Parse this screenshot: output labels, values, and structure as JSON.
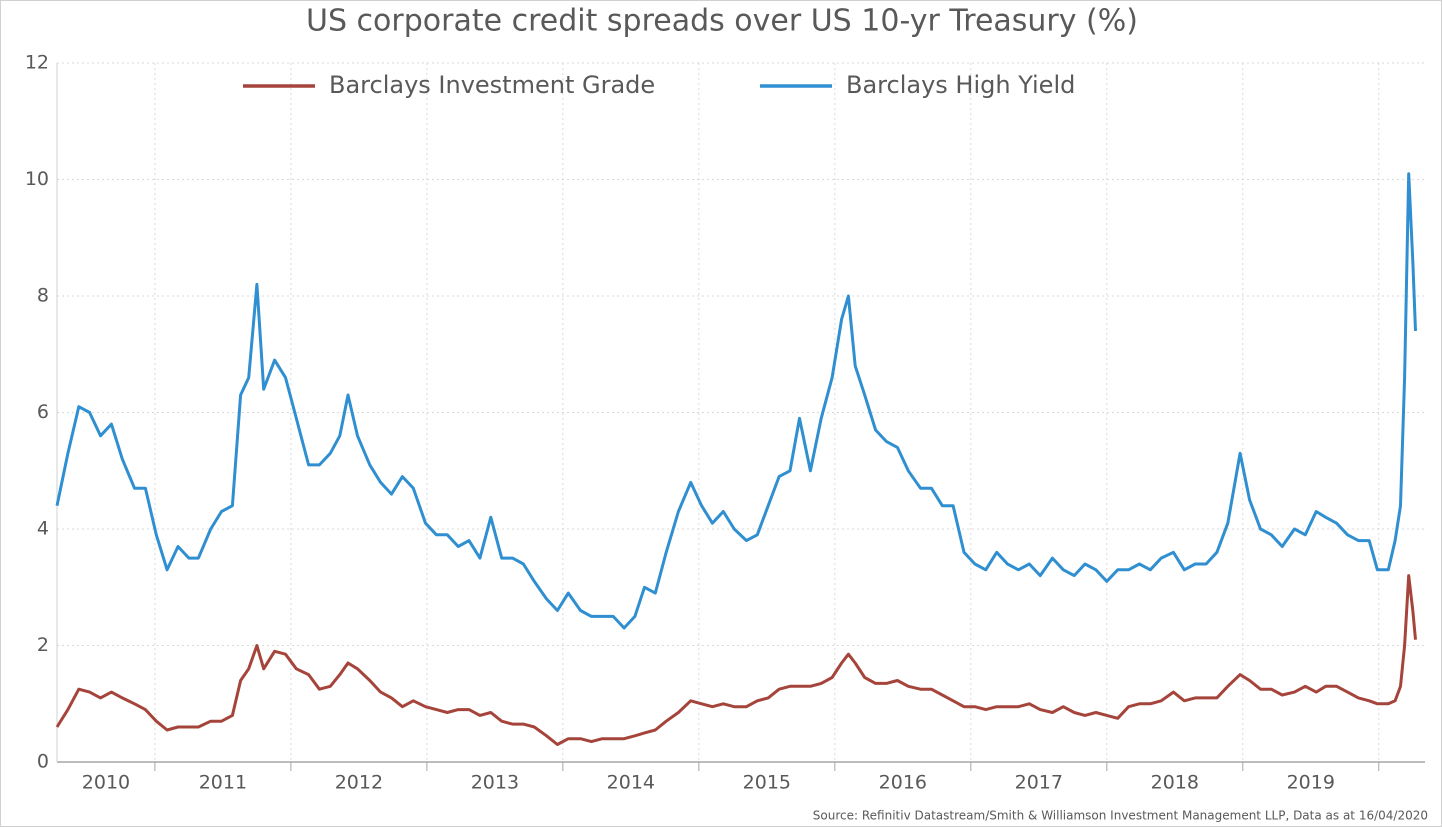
{
  "chart_data": {
    "type": "line",
    "title": "US corporate credit spreads over US 10-yr Treasury (%)",
    "source": "Source: Refinitiv Datastream/Smith & Williamson Investment Management LLP, Data as at 16/04/2020",
    "x": [
      2010.28,
      2010.36,
      2010.44,
      2010.52,
      2010.6,
      2010.68,
      2010.76,
      2010.85,
      2010.93,
      2011.01,
      2011.09,
      2011.17,
      2011.25,
      2011.32,
      2011.41,
      2011.49,
      2011.57,
      2011.63,
      2011.69,
      2011.75,
      2011.8,
      2011.88,
      2011.96,
      2012.04,
      2012.13,
      2012.21,
      2012.29,
      2012.36,
      2012.42,
      2012.49,
      2012.58,
      2012.66,
      2012.74,
      2012.82,
      2012.9,
      2012.99,
      2013.07,
      2013.15,
      2013.23,
      2013.31,
      2013.39,
      2013.47,
      2013.55,
      2013.63,
      2013.71,
      2013.79,
      2013.88,
      2013.96,
      2014.04,
      2014.13,
      2014.21,
      2014.29,
      2014.37,
      2014.45,
      2014.53,
      2014.6,
      2014.68,
      2014.76,
      2014.85,
      2014.94,
      2015.02,
      2015.1,
      2015.18,
      2015.26,
      2015.35,
      2015.43,
      2015.51,
      2015.59,
      2015.67,
      2015.74,
      2015.82,
      2015.9,
      2015.98,
      2016.05,
      2016.1,
      2016.15,
      2016.22,
      2016.3,
      2016.38,
      2016.46,
      2016.54,
      2016.63,
      2016.71,
      2016.79,
      2016.87,
      2016.95,
      2017.03,
      2017.11,
      2017.19,
      2017.27,
      2017.35,
      2017.43,
      2017.51,
      2017.6,
      2017.68,
      2017.76,
      2017.84,
      2017.92,
      2018.0,
      2018.08,
      2018.16,
      2018.24,
      2018.32,
      2018.4,
      2018.49,
      2018.57,
      2018.65,
      2018.73,
      2018.81,
      2018.89,
      2018.98,
      2019.05,
      2019.13,
      2019.21,
      2019.29,
      2019.38,
      2019.46,
      2019.54,
      2019.61,
      2019.69,
      2019.77,
      2019.85,
      2019.93,
      2019.99,
      2020.07,
      2020.12,
      2020.16,
      2020.19,
      2020.22,
      2020.25,
      2020.27
    ],
    "series": [
      {
        "name": "Barclays Investment Grade",
        "color": "#a5443b",
        "values": [
          0.6,
          0.9,
          1.25,
          1.2,
          1.1,
          1.2,
          1.1,
          1.0,
          0.9,
          0.7,
          0.55,
          0.6,
          0.6,
          0.6,
          0.7,
          0.7,
          0.8,
          1.4,
          1.6,
          2.0,
          1.6,
          1.9,
          1.85,
          1.6,
          1.5,
          1.25,
          1.3,
          1.5,
          1.7,
          1.6,
          1.4,
          1.2,
          1.1,
          0.95,
          1.05,
          0.95,
          0.9,
          0.85,
          0.9,
          0.9,
          0.8,
          0.85,
          0.7,
          0.65,
          0.65,
          0.6,
          0.45,
          0.3,
          0.4,
          0.4,
          0.35,
          0.4,
          0.4,
          0.4,
          0.45,
          0.5,
          0.55,
          0.7,
          0.85,
          1.05,
          1.0,
          0.95,
          1.0,
          0.95,
          0.95,
          1.05,
          1.1,
          1.25,
          1.3,
          1.3,
          1.3,
          1.35,
          1.45,
          1.7,
          1.85,
          1.7,
          1.45,
          1.35,
          1.35,
          1.4,
          1.3,
          1.25,
          1.25,
          1.15,
          1.05,
          0.95,
          0.95,
          0.9,
          0.95,
          0.95,
          0.95,
          1.0,
          0.9,
          0.85,
          0.95,
          0.85,
          0.8,
          0.85,
          0.8,
          0.75,
          0.95,
          1.0,
          1.0,
          1.05,
          1.2,
          1.05,
          1.1,
          1.1,
          1.1,
          1.3,
          1.5,
          1.4,
          1.25,
          1.25,
          1.15,
          1.2,
          1.3,
          1.2,
          1.3,
          1.3,
          1.2,
          1.1,
          1.05,
          1.0,
          1.0,
          1.05,
          1.3,
          2.0,
          3.2,
          2.6,
          2.1
        ]
      },
      {
        "name": "Barclays High Yield",
        "color": "#2f8fd0",
        "values": [
          4.4,
          5.3,
          6.1,
          6.0,
          5.6,
          5.8,
          5.2,
          4.7,
          4.7,
          3.9,
          3.3,
          3.7,
          3.5,
          3.5,
          4.0,
          4.3,
          4.4,
          6.3,
          6.6,
          8.2,
          6.4,
          6.9,
          6.6,
          5.9,
          5.1,
          5.1,
          5.3,
          5.6,
          6.3,
          5.6,
          5.1,
          4.8,
          4.6,
          4.9,
          4.7,
          4.1,
          3.9,
          3.9,
          3.7,
          3.8,
          3.5,
          4.2,
          3.5,
          3.5,
          3.4,
          3.1,
          2.8,
          2.6,
          2.9,
          2.6,
          2.5,
          2.5,
          2.5,
          2.3,
          2.5,
          3.0,
          2.9,
          3.6,
          4.3,
          4.8,
          4.4,
          4.1,
          4.3,
          4.0,
          3.8,
          3.9,
          4.4,
          4.9,
          5.0,
          5.9,
          5.0,
          5.9,
          6.6,
          7.6,
          8.0,
          6.8,
          6.3,
          5.7,
          5.5,
          5.4,
          5.0,
          4.7,
          4.7,
          4.4,
          4.4,
          3.6,
          3.4,
          3.3,
          3.6,
          3.4,
          3.3,
          3.4,
          3.2,
          3.5,
          3.3,
          3.2,
          3.4,
          3.3,
          3.1,
          3.3,
          3.3,
          3.4,
          3.3,
          3.5,
          3.6,
          3.3,
          3.4,
          3.4,
          3.6,
          4.1,
          5.3,
          4.5,
          4.0,
          3.9,
          3.7,
          4.0,
          3.9,
          4.3,
          4.2,
          4.1,
          3.9,
          3.8,
          3.8,
          3.3,
          3.3,
          3.8,
          4.4,
          6.6,
          10.1,
          8.6,
          7.4
        ]
      }
    ],
    "xlim": [
      2010.28,
      2020.34
    ],
    "xticks": [
      2010,
      2011,
      2012,
      2013,
      2014,
      2015,
      2016,
      2017,
      2018,
      2019
    ],
    "xgrid": [
      2011,
      2012,
      2013,
      2014,
      2015,
      2016,
      2017,
      2018,
      2019,
      2020
    ],
    "ylim": [
      0,
      12
    ],
    "yticks": [
      0,
      2,
      4,
      6,
      8,
      10,
      12
    ],
    "grid": true,
    "legend": "top"
  }
}
